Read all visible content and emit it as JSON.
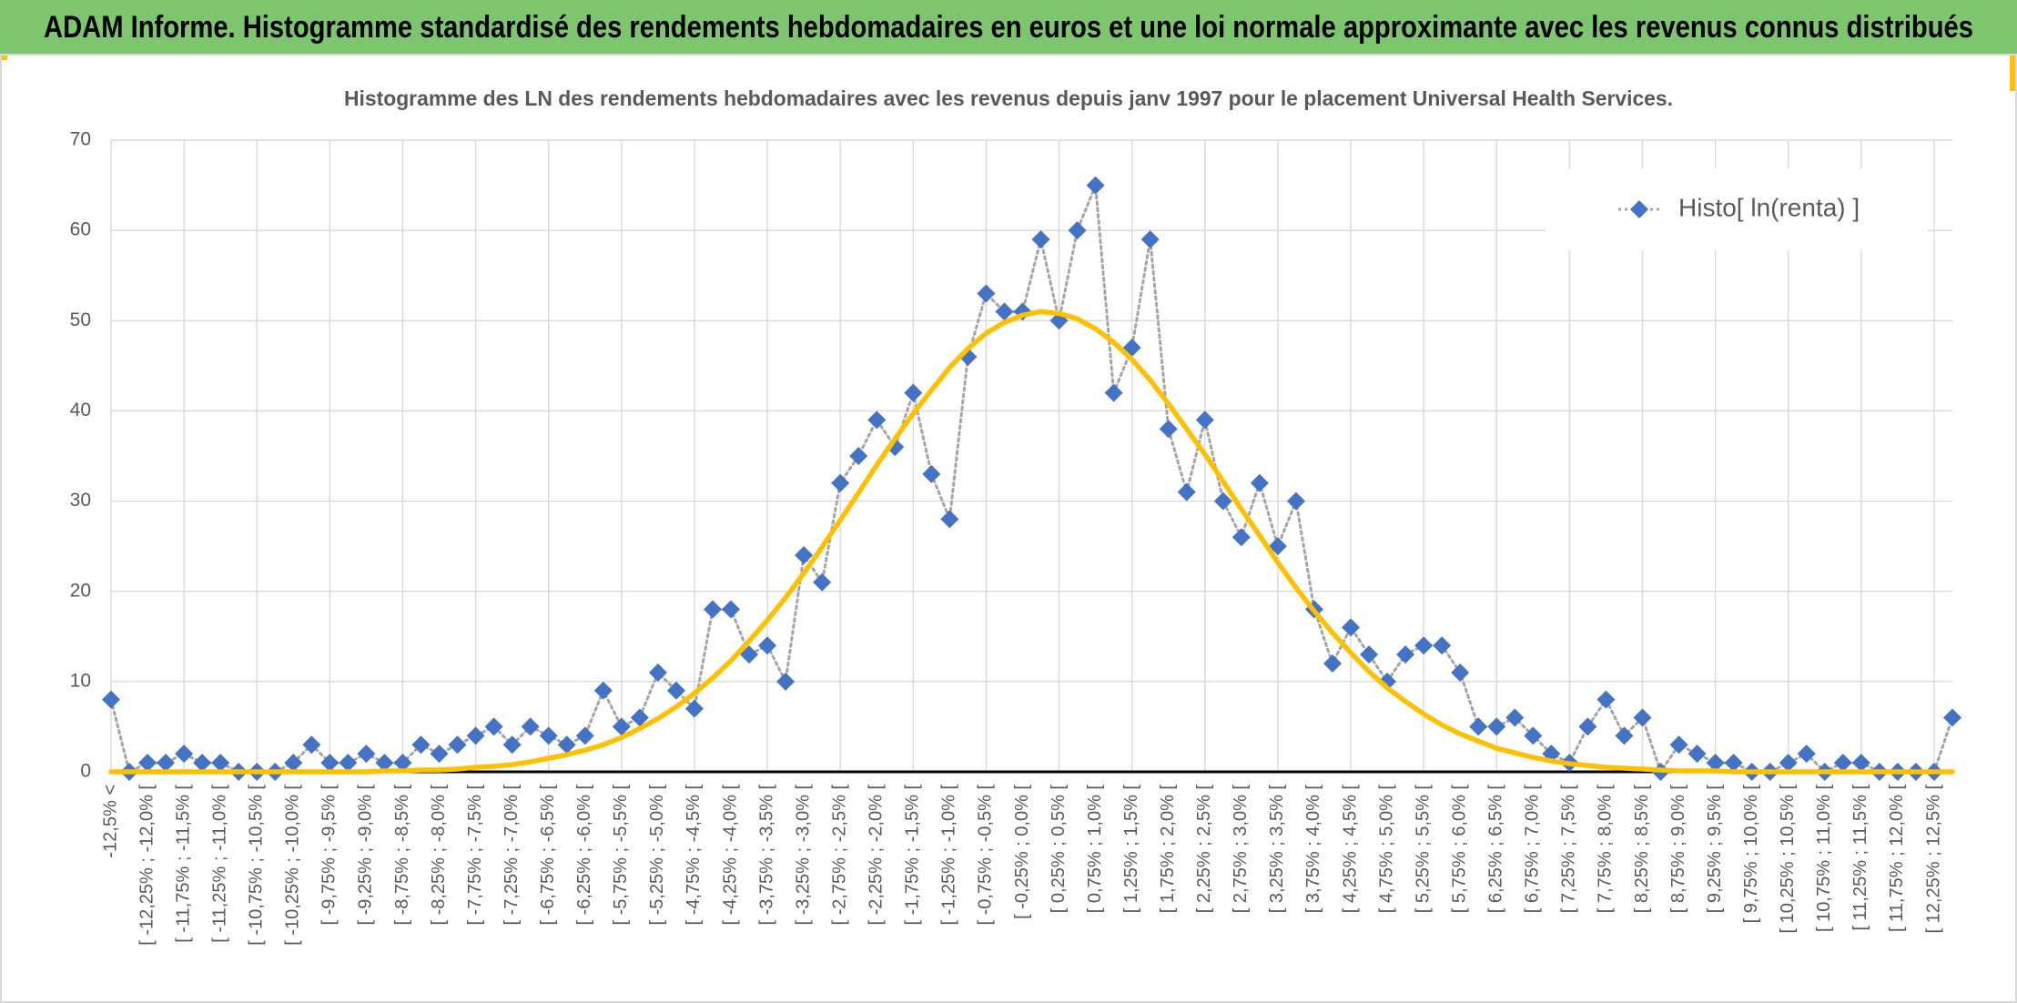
{
  "header": {
    "title": "ADAM Informe. Histogramme standardisé des rendements hebdomadaires en euros et une loi normale approximante avec les revenus connus distribués"
  },
  "chart_data": {
    "type": "line",
    "title": "Histogramme des LN des rendements hebdomadaires avec les revenus depuis janv 1997 pour le placement Universal Health Services.",
    "categories": [
      "-12,5% <",
      null,
      "[ -12,25% ; -12,0% [",
      null,
      "[ -11,75% ; -11,5% [",
      null,
      "[ -11,25% ; -11,0% [",
      null,
      "[ -10,75% ; -10,5% [",
      null,
      "[ -10,25% ; -10,0% [",
      null,
      "[ -9,75% ; -9,5% [",
      null,
      "[ -9,25% ; -9,0% [",
      null,
      "[ -8,75% ; -8,5% [",
      null,
      "[ -8,25% ; -8,0% [",
      null,
      "[ -7,75% ; -7,5% [",
      null,
      "[ -7,25% ; -7,0% [",
      null,
      "[ -6,75% ; -6,5% [",
      null,
      "[ -6,25% ; -6,0% [",
      null,
      "[ -5,75% ; -5,5% [",
      null,
      "[ -5,25% ; -5,0% [",
      null,
      "[ -4,75% ; -4,5% [",
      null,
      "[ -4,25% ; -4,0% [",
      null,
      "[ -3,75% ; -3,5% [",
      null,
      "[ -3,25% ; -3,0% [",
      null,
      "[ -2,75% ; -2,5% [",
      null,
      "[ -2,25% ; -2,0% [",
      null,
      "[ -1,75% ; -1,5% [",
      null,
      "[ -1,25% ; -1,0% [",
      null,
      "[ -0,75% ; -0,5% [",
      null,
      "[ -0,25% ; 0,0% [",
      null,
      "[ 0,25% ; 0,5% [",
      null,
      "[ 0,75% ; 1,0% [",
      null,
      "[ 1,25% ; 1,5% [",
      null,
      "[ 1,75% ; 2,0% [",
      null,
      "[ 2,25% ; 2,5% [",
      null,
      "[ 2,75% ; 3,0% [",
      null,
      "[ 3,25% ; 3,5% [",
      null,
      "[ 3,75% ; 4,0% [",
      null,
      "[ 4,25% ; 4,5% [",
      null,
      "[ 4,75% ; 5,0% [",
      null,
      "[ 5,25% ; 5,5% [",
      null,
      "[ 5,75% ; 6,0% [",
      null,
      "[ 6,25% ; 6,5% [",
      null,
      "[ 6,75% ; 7,0% [",
      null,
      "[ 7,25% ; 7,5% [",
      null,
      "[ 7,75% ; 8,0% [",
      null,
      "[ 8,25% ; 8,5% [",
      null,
      "[ 8,75% ; 9,0% [",
      null,
      "[ 9,25% ; 9,5% [",
      null,
      "[ 9,75% ; 10,0% [",
      null,
      "[ 10,25% ; 10,5% [",
      null,
      "[ 10,75% ; 11,0% [",
      null,
      "[ 11,25% ; 11,5% [",
      null,
      "[ 11,75% ; 12,0% [",
      null,
      "[ 12,25% ; 12,5% [",
      null
    ],
    "series": [
      {
        "name": "Histo[ ln(renta) ]",
        "color": "#4472c4",
        "line_color": "#a5a5a5",
        "dash": "dotted",
        "marker": "diamond",
        "values": [
          8,
          0,
          1,
          1,
          2,
          1,
          1,
          0,
          0,
          0,
          1,
          3,
          1,
          1,
          2,
          1,
          1,
          3,
          2,
          3,
          4,
          5,
          3,
          5,
          4,
          3,
          4,
          9,
          5,
          6,
          11,
          9,
          7,
          18,
          18,
          13,
          14,
          10,
          24,
          21,
          32,
          35,
          39,
          36,
          42,
          33,
          28,
          46,
          53,
          51,
          51,
          59,
          50,
          60,
          65,
          42,
          47,
          59,
          38,
          31,
          39,
          30,
          26,
          32,
          25,
          30,
          18,
          12,
          16,
          13,
          10,
          13,
          14,
          14,
          11,
          5,
          5,
          6,
          4,
          2,
          1,
          5,
          8,
          4,
          6,
          0,
          3,
          2,
          1,
          1,
          0,
          0,
          1,
          2,
          0,
          1,
          1,
          0,
          0,
          0,
          0,
          6
        ]
      },
      {
        "color": "#ffc000",
        "dash": "solid",
        "marker": "none",
        "values": [
          0,
          0,
          0,
          0,
          0,
          0,
          0,
          0,
          0,
          0,
          0,
          0,
          0,
          0,
          0,
          0.1,
          0.1,
          0.2,
          0.2,
          0.3,
          0.5,
          0.6,
          0.8,
          1.1,
          1.5,
          1.9,
          2.4,
          3.0,
          3.8,
          4.8,
          5.9,
          7.2,
          8.7,
          10.4,
          12.3,
          14.5,
          16.8,
          19.3,
          22.0,
          24.9,
          27.9,
          30.9,
          34.0,
          36.9,
          39.7,
          42.3,
          44.8,
          46.9,
          48.6,
          49.8,
          50.6,
          51.0,
          50.8,
          50.2,
          49.1,
          47.6,
          45.7,
          43.4,
          40.8,
          38.0,
          35.2,
          32.2,
          29.1,
          26.2,
          23.2,
          20.4,
          17.8,
          15.4,
          13.2,
          11.1,
          9.3,
          7.8,
          6.4,
          5.2,
          4.2,
          3.4,
          2.6,
          2.1,
          1.6,
          1.2,
          0.9,
          0.7,
          0.5,
          0.4,
          0.3,
          0.2,
          0.1,
          0.1,
          0.1,
          0,
          0,
          0,
          0,
          0,
          0,
          0,
          0,
          0,
          0,
          0,
          0,
          0
        ]
      }
    ],
    "ylim": [
      0,
      70
    ],
    "yticks": [
      0,
      10,
      20,
      30,
      40,
      50,
      60,
      70
    ],
    "grid": true,
    "legend": "top-right"
  }
}
